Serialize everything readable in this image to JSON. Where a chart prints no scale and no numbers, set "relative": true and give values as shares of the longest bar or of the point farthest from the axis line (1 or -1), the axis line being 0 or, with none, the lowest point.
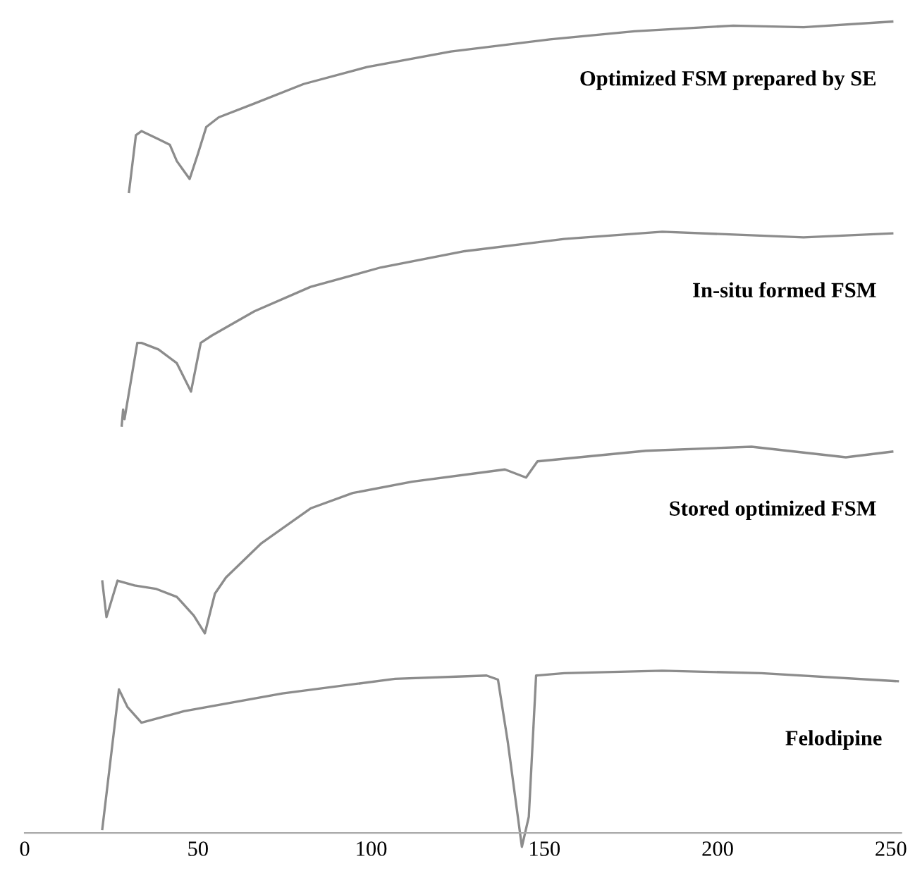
{
  "chart_data": {
    "type": "line",
    "relative": true,
    "xlim": [
      0,
      253
    ],
    "xticks": [
      0,
      50,
      100,
      150,
      200,
      250
    ],
    "grid": false,
    "legend": false,
    "marker": "none",
    "line_style": "solid",
    "series": [
      {
        "name": "Optimized FSM prepared by SE",
        "color": "#8c8c8c",
        "x": [
          30.1,
          32.1,
          33.7,
          38.6,
          41.9,
          43.9,
          47.6,
          50,
          52.4,
          56,
          66.3,
          80.5,
          98.8,
          123,
          151.6,
          176,
          204.5,
          224.8,
          250.4
        ],
        "values": [
          0.79,
          0.86,
          0.865,
          0.855,
          0.848,
          0.828,
          0.806,
          0.837,
          0.87,
          0.882,
          0.899,
          0.923,
          0.944,
          0.963,
          0.978,
          0.988,
          0.995,
          0.993,
          1
        ]
      },
      {
        "name": "In-situ formed FSM",
        "color": "#8c8c8c",
        "x": [
          28,
          28.4,
          28.8,
          32.5,
          33.7,
          38.6,
          43.9,
          48,
          50.8,
          54,
          66.3,
          82.5,
          102.8,
          127,
          155.7,
          184,
          224.8,
          250.4
        ],
        "values": [
          0.502,
          0.522,
          0.51,
          0.604,
          0.604,
          0.596,
          0.579,
          0.544,
          0.604,
          0.613,
          0.643,
          0.673,
          0.697,
          0.717,
          0.732,
          0.741,
          0.734,
          0.739
        ]
      },
      {
        "name": "Stored optimized FSM",
        "color": "#8c8c8c",
        "x": [
          22.4,
          23.6,
          26.8,
          31.7,
          37.8,
          43.9,
          48.8,
          52,
          54.9,
          58.1,
          68.3,
          82.5,
          94.7,
          111.8,
          138.6,
          144.7,
          148,
          179.3,
          209.8,
          237,
          250.4
        ],
        "values": [
          0.31,
          0.266,
          0.311,
          0.305,
          0.301,
          0.291,
          0.268,
          0.246,
          0.295,
          0.315,
          0.357,
          0.4,
          0.419,
          0.433,
          0.448,
          0.438,
          0.458,
          0.471,
          0.476,
          0.463,
          0.47
        ]
      },
      {
        "name": "Felodipine",
        "color": "#8c8c8c",
        "x": [
          22.4,
          27.2,
          29.7,
          33.7,
          45.9,
          74.4,
          106.9,
          133.3,
          136.6,
          139.4,
          143.5,
          145.5,
          147.6,
          155.7,
          184,
          212.6,
          252
        ],
        "values": [
          0.005,
          0.177,
          0.155,
          0.136,
          0.15,
          0.172,
          0.19,
          0.194,
          0.189,
          0.113,
          -0.017,
          0.02,
          0.194,
          0.197,
          0.2,
          0.197,
          0.187
        ]
      }
    ]
  }
}
